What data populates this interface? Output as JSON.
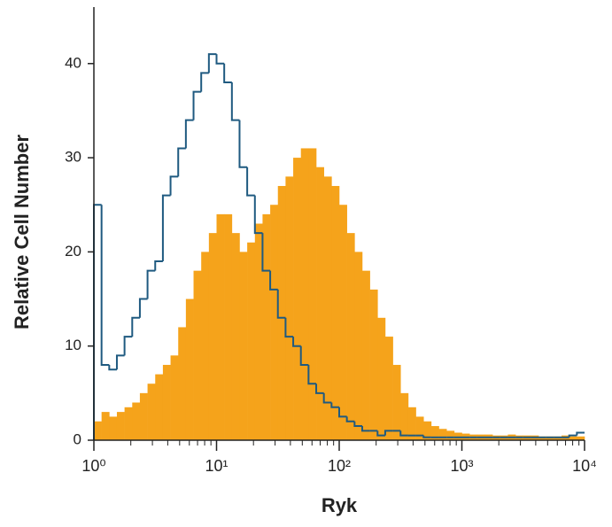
{
  "chart_data": {
    "type": "histogram",
    "x_label": "Ryk",
    "y_label": "Relative Cell Number",
    "xscale": "log",
    "xlim": [
      1,
      10000
    ],
    "ylim": [
      0,
      46
    ],
    "xticks": [
      {
        "value": 1,
        "label": "10⁰"
      },
      {
        "value": 10,
        "label": "10¹"
      },
      {
        "value": 100,
        "label": "10²"
      },
      {
        "value": 1000,
        "label": "10³"
      },
      {
        "value": 10000,
        "label": "10⁴"
      }
    ],
    "xminorticks": [
      2,
      3,
      4,
      5,
      6,
      7,
      8,
      9,
      20,
      30,
      40,
      50,
      60,
      70,
      80,
      90,
      200,
      300,
      400,
      500,
      600,
      700,
      800,
      900,
      2000,
      3000,
      4000,
      5000,
      6000,
      7000,
      8000,
      9000
    ],
    "yticks": [
      0,
      10,
      20,
      30,
      40
    ],
    "bins": [
      1,
      1.155,
      1.334,
      1.54,
      1.778,
      2.054,
      2.371,
      2.738,
      3.162,
      3.652,
      4.217,
      4.87,
      5.623,
      6.494,
      7.499,
      8.66,
      10,
      11.55,
      13.34,
      15.4,
      17.78,
      20.54,
      23.71,
      27.38,
      31.62,
      36.52,
      42.17,
      48.7,
      56.23,
      64.94,
      74.99,
      86.6,
      100,
      115.5,
      133.4,
      154.0,
      177.8,
      205.4,
      237.1,
      273.8,
      316.2,
      365.2,
      421.7,
      487.0,
      562.3,
      649.4,
      749.9,
      866.0,
      1000,
      1155,
      1334,
      1540,
      1778,
      2054,
      2371,
      2738,
      3162,
      3652,
      4217,
      4870,
      5623,
      6494,
      7499,
      8660,
      10000
    ],
    "series": [
      {
        "color": "#f5a31b",
        "fill": true,
        "values": [
          2,
          3,
          2.5,
          3,
          3.5,
          4,
          5,
          6,
          7,
          8,
          9,
          12,
          15,
          18,
          20,
          22,
          24,
          24,
          22,
          20,
          21,
          23,
          24,
          25,
          27,
          28,
          30,
          31,
          31,
          29,
          28,
          27,
          25,
          22,
          20,
          18,
          16,
          13,
          11,
          8,
          5,
          3.5,
          2.5,
          2,
          1.5,
          1.2,
          1,
          0.8,
          0.7,
          0.6,
          0.6,
          0.6,
          0.5,
          0.5,
          0.6,
          0.5,
          0.5,
          0.5,
          0.4,
          0.4,
          0.4,
          0.5,
          0.4,
          0.4
        ]
      },
      {
        "color": "#1f5a80",
        "fill": false,
        "values": [
          25,
          8,
          7.5,
          9,
          11,
          13,
          15,
          18,
          19,
          26,
          28,
          31,
          34,
          37,
          39,
          41,
          40,
          38,
          34,
          29,
          26,
          22,
          18,
          16,
          13,
          11,
          10,
          8,
          6,
          5,
          4,
          3.5,
          2.5,
          2,
          1.5,
          1,
          1,
          0.5,
          1,
          1,
          0.5,
          0.5,
          0.5,
          0.3,
          0.3,
          0.3,
          0.3,
          0.3,
          0.3,
          0.3,
          0.3,
          0.3,
          0.3,
          0.3,
          0.3,
          0.3,
          0.3,
          0.3,
          0.3,
          0.3,
          0.3,
          0.3,
          0.5,
          0.8
        ]
      }
    ]
  }
}
